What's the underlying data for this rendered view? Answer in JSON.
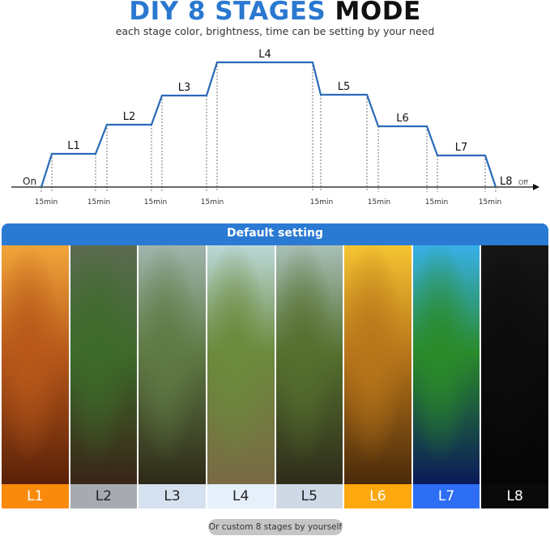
{
  "title": {
    "part1": "DIY 8 STAGES",
    "part2": "MODE"
  },
  "subtitle": "each stage color, brightness, time can be setting by your need",
  "diagram": {
    "start_label": "On",
    "end_label": "Off",
    "stages": [
      "L1",
      "L2",
      "L3",
      "L4",
      "L5",
      "L6",
      "L7",
      "L8"
    ],
    "ramp_labels": [
      "15min",
      "15min",
      "15min",
      "15min",
      "15min",
      "15min",
      "15min",
      "15min"
    ]
  },
  "default_header": "Default setting",
  "panels": [
    {
      "label": "L1",
      "label_bg": "#f98a0c",
      "label_color": "#ffffff",
      "scene": [
        "#f2a63a",
        "#b8581a",
        "#5a2108"
      ]
    },
    {
      "label": "L2",
      "label_bg": "#a7abb1",
      "label_color": "#222222",
      "scene": [
        "#5b6b50",
        "#3d6a2a",
        "#3a2418"
      ]
    },
    {
      "label": "L3",
      "label_bg": "#d6e1ef",
      "label_color": "#222222",
      "scene": [
        "#9fb5ad",
        "#5f7a44",
        "#2e2a18"
      ]
    },
    {
      "label": "L4",
      "label_bg": "#e6f0fb",
      "label_color": "#222222",
      "scene": [
        "#bcd8d8",
        "#6b8a3c",
        "#7a6a45"
      ]
    },
    {
      "label": "L5",
      "label_bg": "#cfd9e6",
      "label_color": "#222222",
      "scene": [
        "#a8bfb8",
        "#55702f",
        "#2f2c1a"
      ]
    },
    {
      "label": "L6",
      "label_bg": "#fca80e",
      "label_color": "#ffffff",
      "scene": [
        "#f5c431",
        "#b8761a",
        "#4a2a0a"
      ]
    },
    {
      "label": "L7",
      "label_bg": "#2d6ef5",
      "label_color": "#ffffff",
      "scene": [
        "#38b0e8",
        "#2a8a2a",
        "#0b1a5a"
      ]
    },
    {
      "label": "L8",
      "label_bg": "#0a0a0a",
      "label_color": "#ffffff",
      "scene": [
        "#161616",
        "#0c0c0c",
        "#050505"
      ]
    }
  ],
  "custom_pill": "Or custom 8 stages by yourself",
  "colors": {
    "accent": "#2a78d0",
    "line": "#2a6ab8"
  }
}
